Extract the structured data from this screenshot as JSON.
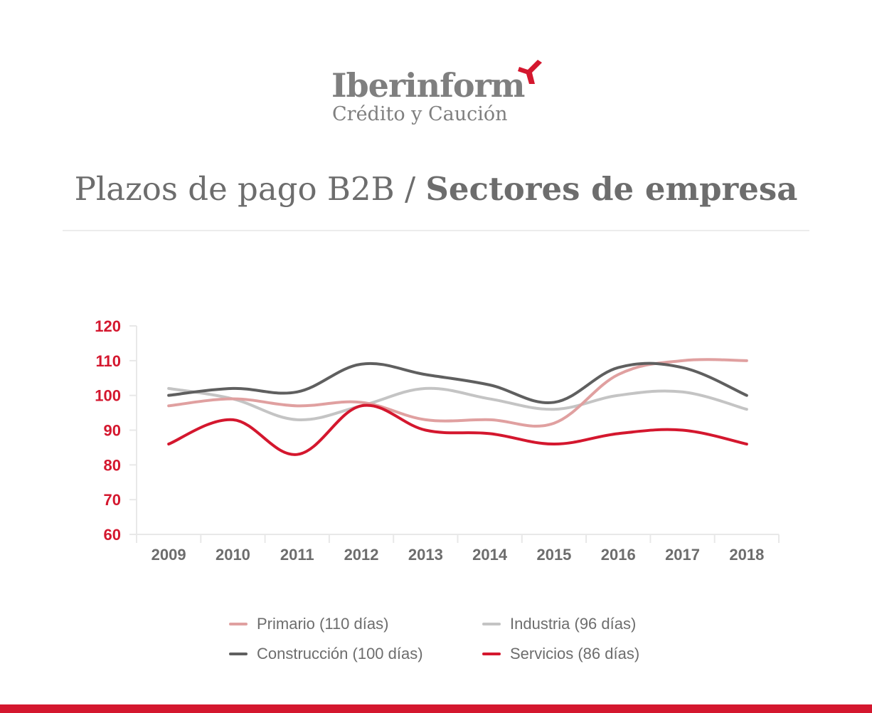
{
  "logo": {
    "brand": "Iberinform",
    "sub": "Crédito y Caución",
    "mark_color": "#d4172e"
  },
  "title": {
    "regular": "Plazos de pago B2B / ",
    "bold": "Sectores de empresa"
  },
  "colors": {
    "axis_tick_labels_y": "#d4172e",
    "axis_tick_labels_x": "#6d6d6d",
    "grid": "#e8e8e8",
    "footer_bar": "#d4172e"
  },
  "chart_data": {
    "type": "line",
    "title": "Plazos de pago B2B / Sectores de empresa",
    "xlabel": "",
    "ylabel": "",
    "x": [
      "2009",
      "2010",
      "2011",
      "2012",
      "2013",
      "2014",
      "2015",
      "2016",
      "2017",
      "2018"
    ],
    "ylim": [
      60,
      120
    ],
    "yticks": [
      60,
      70,
      80,
      90,
      100,
      110,
      120
    ],
    "grid": false,
    "legend_position": "bottom",
    "series": [
      {
        "name": "Primario (110 días)",
        "color": "#e0a0a0",
        "values": [
          97,
          99,
          97,
          98,
          93,
          93,
          92,
          106,
          110,
          110
        ]
      },
      {
        "name": "Industria (96 días)",
        "color": "#c4c4c4",
        "values": [
          102,
          99,
          93,
          97,
          102,
          99,
          96,
          100,
          101,
          96
        ]
      },
      {
        "name": "Construcción (100 días)",
        "color": "#5f5f5f",
        "values": [
          100,
          102,
          101,
          109,
          106,
          103,
          98,
          108,
          108,
          100
        ]
      },
      {
        "name": "Servicios (86 días)",
        "color": "#d4172e",
        "values": [
          86,
          93,
          83,
          97,
          90,
          89,
          86,
          89,
          90,
          86
        ]
      }
    ]
  }
}
